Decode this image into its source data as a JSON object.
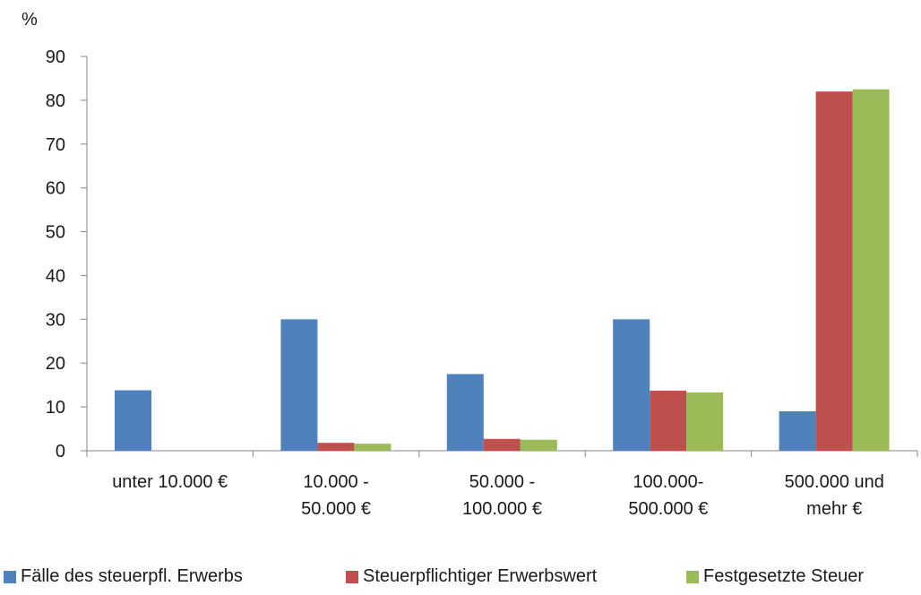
{
  "chart_data": {
    "type": "bar",
    "ylabel": "%",
    "ylim": [
      0,
      90
    ],
    "yticks": [
      "0",
      "10",
      "20",
      "30",
      "40",
      "50",
      "60",
      "70",
      "80",
      "90"
    ],
    "categories": [
      [
        "unter 10.000 €"
      ],
      [
        "10.000 -",
        "50.000 €"
      ],
      [
        "50.000 -",
        "100.000 €"
      ],
      [
        "100.000-",
        "500.000 €"
      ],
      [
        "500.000 und",
        "mehr €"
      ]
    ],
    "series": [
      {
        "name": "Fälle des steuerpfl. Erwerbs",
        "color": "#4f81bd",
        "values": [
          13.8,
          30.0,
          17.5,
          30.0,
          9.0
        ]
      },
      {
        "name": "Steuerpflichtiger Erwerbswert",
        "color": "#c0504d",
        "values": [
          0,
          1.8,
          2.7,
          13.7,
          82.0
        ]
      },
      {
        "name": "Festgesetzte Steuer",
        "color": "#9bbb59",
        "values": [
          0,
          1.6,
          2.5,
          13.3,
          82.5
        ]
      }
    ],
    "legend_position": "bottom",
    "grid": false
  }
}
